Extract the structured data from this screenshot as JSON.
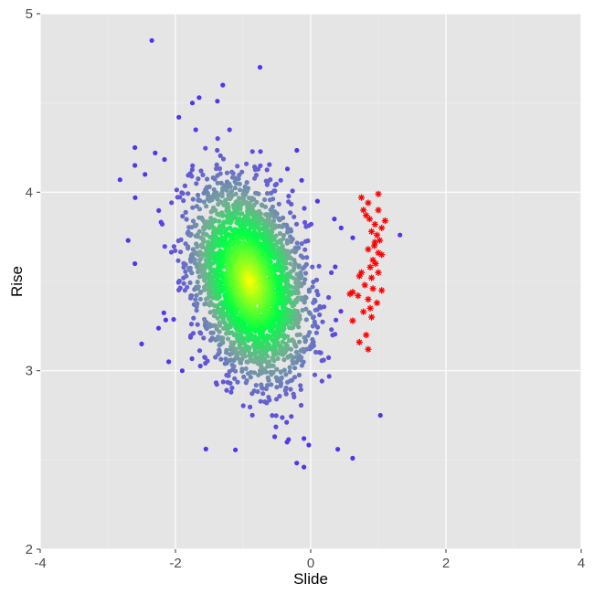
{
  "chart_data": {
    "type": "scatter",
    "title": "",
    "xlabel": "Slide",
    "ylabel": "Rise",
    "xlim": [
      -4,
      4
    ],
    "ylim": [
      2,
      5
    ],
    "x_ticks": [
      -4,
      -2,
      0,
      2,
      4
    ],
    "x_tick_labels": [
      "-4",
      "-2",
      "0",
      "2",
      "4"
    ],
    "y_ticks": [
      2,
      3,
      4,
      5
    ],
    "y_tick_labels": [
      "2",
      "3",
      "4",
      "5"
    ],
    "grid": true,
    "legend": "none",
    "colors": {
      "panel_background": "#e5e5e5",
      "grid_major": "#ffffff",
      "grid_minor": "#f0f0f0",
      "density_high": "#ffff00",
      "density_mid": "#00ff44",
      "density_low": "#6666cc",
      "density_outlier": "#5533ee",
      "highlight": "#ff0000"
    },
    "main_cluster": {
      "center": [
        -0.9,
        3.5
      ],
      "note_points_approx": 3000
    },
    "series": [
      {
        "marker": "dot",
        "color": "density-scaled",
        "points": [
          [
            -2.35,
            4.85
          ],
          [
            -0.75,
            4.7
          ],
          [
            -1.3,
            4.6
          ],
          [
            -1.65,
            4.53
          ],
          [
            -1.75,
            4.5
          ],
          [
            -1.38,
            4.51
          ],
          [
            -1.95,
            4.42
          ],
          [
            -1.7,
            4.35
          ],
          [
            -1.2,
            4.35
          ],
          [
            -2.82,
            4.07
          ],
          [
            -2.6,
            4.25
          ],
          [
            -2.6,
            4.15
          ],
          [
            -2.45,
            4.1
          ],
          [
            -2.3,
            4.22
          ],
          [
            -2.7,
            3.73
          ],
          [
            -2.6,
            3.6
          ],
          [
            -2.5,
            3.15
          ],
          [
            -2.1,
            3.05
          ],
          [
            -1.9,
            3.0
          ],
          [
            -0.35,
            2.6
          ],
          [
            -0.1,
            2.62
          ],
          [
            0.4,
            2.56
          ],
          [
            -0.1,
            2.46
          ],
          [
            0.62,
            2.51
          ],
          [
            1.03,
            2.75
          ],
          [
            1.32,
            3.76
          ],
          [
            0.45,
            3.8
          ],
          [
            0.35,
            3.85
          ],
          [
            0.1,
            3.95
          ],
          [
            0.15,
            3.1
          ]
        ]
      },
      {
        "marker": "asterisk",
        "color": "#ff0000",
        "points": [
          [
            0.75,
            3.97
          ],
          [
            0.85,
            3.94
          ],
          [
            1.0,
            3.99
          ],
          [
            0.78,
            3.9
          ],
          [
            0.82,
            3.87
          ],
          [
            0.87,
            3.85
          ],
          [
            0.95,
            3.82
          ],
          [
            1.05,
            3.8
          ],
          [
            1.1,
            3.84
          ],
          [
            0.9,
            3.78
          ],
          [
            0.98,
            3.76
          ],
          [
            1.02,
            3.73
          ],
          [
            0.94,
            3.7
          ],
          [
            0.85,
            3.68
          ],
          [
            1.0,
            3.66
          ],
          [
            0.92,
            3.62
          ],
          [
            1.05,
            3.65
          ],
          [
            0.96,
            3.6
          ],
          [
            0.88,
            3.58
          ],
          [
            1.0,
            3.55
          ],
          [
            0.72,
            3.53
          ],
          [
            0.8,
            3.48
          ],
          [
            0.92,
            3.46
          ],
          [
            1.05,
            3.45
          ],
          [
            0.62,
            3.44
          ],
          [
            0.58,
            3.43
          ],
          [
            0.7,
            3.42
          ],
          [
            0.85,
            3.4
          ],
          [
            0.98,
            3.38
          ],
          [
            0.88,
            3.35
          ],
          [
            0.78,
            3.33
          ],
          [
            0.9,
            3.3
          ],
          [
            0.62,
            3.28
          ],
          [
            0.82,
            3.2
          ],
          [
            0.72,
            3.16
          ],
          [
            0.85,
            3.12
          ],
          [
            0.75,
            3.55
          ],
          [
            0.95,
            3.72
          ],
          [
            1.0,
            3.9
          ],
          [
            0.9,
            3.52
          ]
        ]
      }
    ]
  }
}
